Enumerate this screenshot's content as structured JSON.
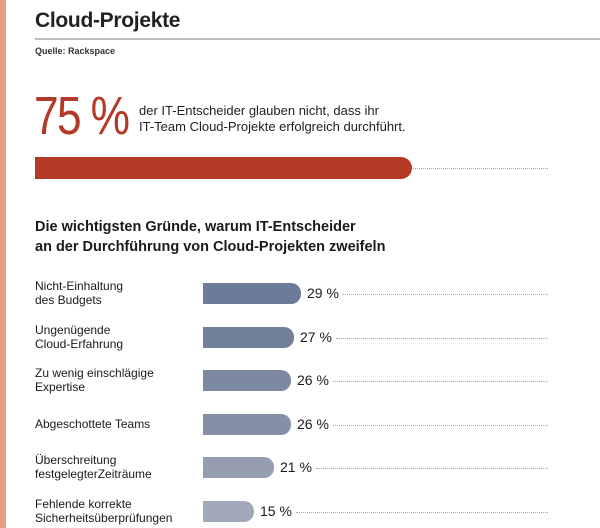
{
  "header": {
    "title": "Cloud-Projekte",
    "source": "Quelle: Rackspace"
  },
  "hero": {
    "value_label": "75 %",
    "value": 75,
    "line1": "der IT-Entscheider glauben nicht, dass ihr",
    "line2": "IT-Team Cloud-Projekte erfolgreich durchführt.",
    "color": "#b23a27"
  },
  "chart_data": {
    "type": "bar",
    "orientation": "horizontal",
    "title": "Die wichtigsten Gründe, warum IT-Entscheider an der Durchführung von Cloud-Projekten zweifeln",
    "title_lines": [
      "Die wichtigsten Gründe, warum IT-Entscheider",
      "an der Durchführung von Cloud-Projekten zweifeln"
    ],
    "categories": [
      [
        "Nicht-Einhaltung",
        "des Budgets"
      ],
      [
        "Ungenügende",
        "Cloud-Erfahrung"
      ],
      [
        "Zu wenig einschlägige",
        "Expertise"
      ],
      [
        "Abgeschottete Teams"
      ],
      [
        "Überschreitung",
        "festgelegterZeiträume"
      ],
      [
        "Fehlende korrekte",
        "Sicherheitsüberprüfungen"
      ]
    ],
    "values": [
      29,
      27,
      26,
      26,
      21,
      15
    ],
    "value_labels": [
      "29 %",
      "27 %",
      "26 %",
      "26 %",
      "21 %",
      "15 %"
    ],
    "colors": [
      "#6c7c98",
      "#717f99",
      "#7d89a1",
      "#8590a6",
      "#959eb1",
      "#a0a8ba"
    ],
    "xlim": [
      0,
      100
    ],
    "grid": false,
    "legend": "none"
  }
}
